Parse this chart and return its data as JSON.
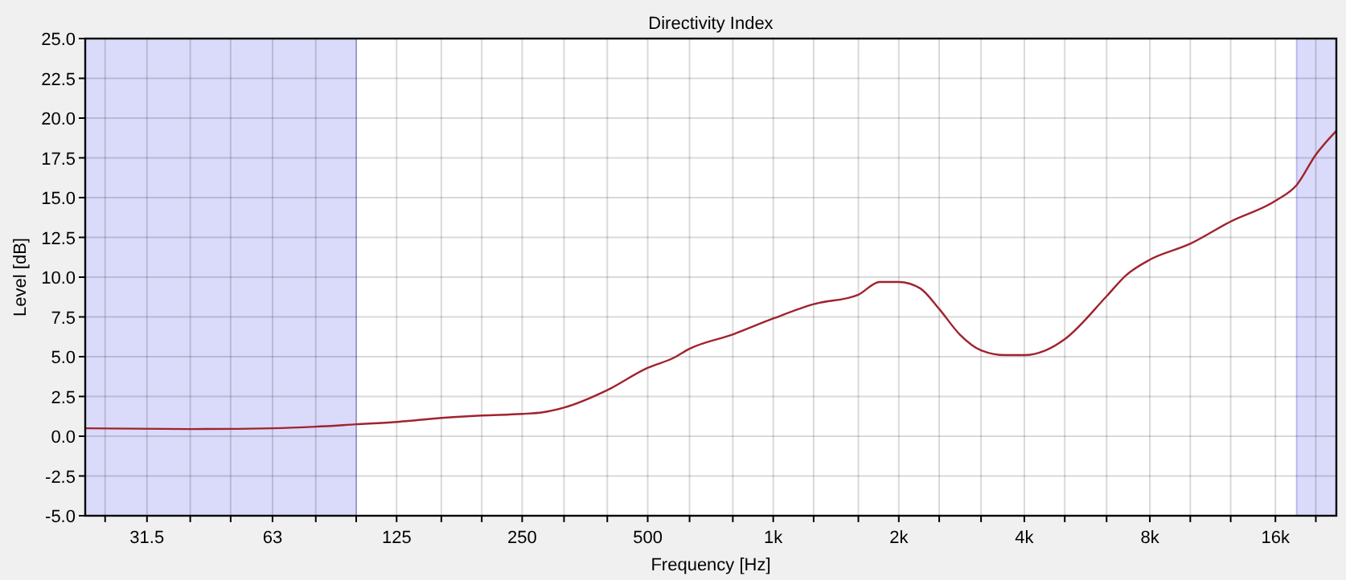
{
  "chart_data": {
    "type": "line",
    "title": "Directivity Index",
    "xlabel": "Frequency [Hz]",
    "ylabel": "Level [dB]",
    "log": "x",
    "grid": true,
    "marker": "none",
    "line_style": "solid",
    "xlim": [
      22.4,
      22400
    ],
    "xticks": [
      {
        "value": 25,
        "label": null
      },
      31.5,
      {
        "value": 40,
        "label": null
      },
      {
        "value": 50,
        "label": null
      },
      63,
      {
        "value": 80,
        "label": null
      },
      {
        "value": 100,
        "label": null
      },
      125,
      {
        "value": 160,
        "label": null
      },
      {
        "value": 200,
        "label": null
      },
      250,
      {
        "value": 315,
        "label": null
      },
      {
        "value": 400,
        "label": null
      },
      500,
      {
        "value": 630,
        "label": null
      },
      {
        "value": 800,
        "label": null
      },
      {
        "value": 1000,
        "label": "1k"
      },
      {
        "value": 1250,
        "label": null
      },
      {
        "value": 1600,
        "label": null
      },
      {
        "value": 2000,
        "label": "2k"
      },
      {
        "value": 2500,
        "label": null
      },
      {
        "value": 3150,
        "label": null
      },
      {
        "value": 4000,
        "label": "4k"
      },
      {
        "value": 5000,
        "label": null
      },
      {
        "value": 6300,
        "label": null
      },
      {
        "value": 8000,
        "label": "8k"
      },
      {
        "value": 10000,
        "label": null
      },
      {
        "value": 12500,
        "label": null
      },
      {
        "value": 16000,
        "label": "16k"
      },
      {
        "value": 20000,
        "label": null
      }
    ],
    "ylim": [
      -5,
      25
    ],
    "yticks": [
      {
        "value": -5,
        "label": "-5.0"
      },
      {
        "value": -2.5,
        "label": "-2.5"
      },
      {
        "value": 0,
        "label": "0.0"
      },
      {
        "value": 2.5,
        "label": "2.5"
      },
      {
        "value": 5,
        "label": "5.0"
      },
      {
        "value": 7.5,
        "label": "7.5"
      },
      {
        "value": 10,
        "label": "10.0"
      },
      {
        "value": 12.5,
        "label": "12.5"
      },
      {
        "value": 15,
        "label": "15.0"
      },
      {
        "value": 17.5,
        "label": "17.5"
      },
      {
        "value": 20,
        "label": "20.0"
      },
      {
        "value": 22.5,
        "label": "22.5"
      },
      {
        "value": 25,
        "label": "25.0"
      }
    ],
    "bands": [
      {
        "axis": "x",
        "from": 22.4,
        "to": 100,
        "color": "#dadafa"
      },
      {
        "axis": "x",
        "from": 18000,
        "to": 22400,
        "color": "#dadafa"
      }
    ],
    "x": [
      22.5,
      40,
      63,
      80,
      100,
      125,
      160,
      200,
      250,
      280,
      315,
      400,
      500,
      574,
      630,
      800,
      1000,
      1250,
      1600,
      1800,
      2000,
      2250,
      2500,
      2800,
      3150,
      3600,
      4000,
      4500,
      5000,
      6300,
      7000,
      8000,
      10000,
      12500,
      16000,
      18000,
      20000,
      22400
    ],
    "series": [
      {
        "color": "#a0232d",
        "values": [
          0.5,
          0.45,
          0.5,
          0.6,
          0.75,
          0.9,
          1.15,
          1.3,
          1.4,
          1.5,
          1.8,
          2.9,
          4.3,
          4.9,
          5.5,
          6.4,
          7.4,
          8.3,
          8.9,
          9.7,
          9.7,
          9.3,
          8.0,
          6.4,
          5.4,
          5.1,
          5.1,
          5.4,
          6.1,
          8.8,
          10.1,
          11.1,
          12.1,
          13.5,
          14.8,
          15.8,
          17.7,
          19.2
        ]
      }
    ]
  }
}
